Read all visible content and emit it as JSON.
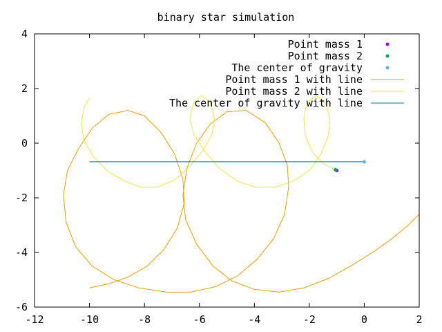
{
  "chart_data": {
    "type": "line",
    "title": "binary star simulation",
    "xlabel": "",
    "ylabel": "",
    "xlim": [
      -12,
      2
    ],
    "ylim": [
      -6,
      4
    ],
    "xticks": [
      -12,
      -10,
      -8,
      -6,
      -4,
      -2,
      0,
      2
    ],
    "yticks": [
      -6,
      -4,
      -2,
      0,
      2,
      4
    ],
    "grid": false,
    "legend_position": "top-right",
    "series": [
      {
        "name": "Point mass 1",
        "kind": "points",
        "color": "#9400d3",
        "points": [
          [
            -1.0,
            -1.0
          ]
        ]
      },
      {
        "name": "Point mass 2",
        "kind": "points",
        "color": "#009e73",
        "points": [
          [
            -1.05,
            -0.97
          ]
        ]
      },
      {
        "name": "The center of gravity",
        "kind": "points",
        "color": "#56b4e9",
        "points": [
          [
            0.0,
            -0.68
          ]
        ]
      },
      {
        "name": "Point mass 1 with line",
        "kind": "line",
        "color": "#e69f00",
        "points": [
          [
            -10.0,
            -5.3
          ],
          [
            -9.3,
            -5.15
          ],
          [
            -8.6,
            -4.9
          ],
          [
            -7.9,
            -4.5
          ],
          [
            -7.3,
            -3.9
          ],
          [
            -6.8,
            -3.1
          ],
          [
            -6.55,
            -2.2
          ],
          [
            -6.6,
            -1.3
          ],
          [
            -6.9,
            -0.4
          ],
          [
            -7.4,
            0.4
          ],
          [
            -8.0,
            1.0
          ],
          [
            -8.6,
            1.2
          ],
          [
            -9.3,
            1.05
          ],
          [
            -9.9,
            0.55
          ],
          [
            -10.4,
            -0.2
          ],
          [
            -10.8,
            -1.0
          ],
          [
            -10.95,
            -1.9
          ],
          [
            -10.85,
            -2.9
          ],
          [
            -10.5,
            -3.8
          ],
          [
            -9.9,
            -4.5
          ],
          [
            -9.1,
            -5.0
          ],
          [
            -8.2,
            -5.3
          ],
          [
            -7.2,
            -5.45
          ],
          [
            -6.3,
            -5.45
          ],
          [
            -5.4,
            -5.25
          ],
          [
            -4.6,
            -4.85
          ],
          [
            -3.9,
            -4.25
          ],
          [
            -3.3,
            -3.5
          ],
          [
            -2.9,
            -2.6
          ],
          [
            -2.75,
            -1.6
          ],
          [
            -2.8,
            -0.8
          ],
          [
            -3.1,
            0.0
          ],
          [
            -3.6,
            0.75
          ],
          [
            -4.3,
            1.2
          ],
          [
            -5.0,
            1.15
          ],
          [
            -5.6,
            0.7
          ],
          [
            -6.1,
            0.0
          ],
          [
            -6.45,
            -0.9
          ],
          [
            -6.6,
            -1.9
          ],
          [
            -6.5,
            -2.8
          ],
          [
            -6.1,
            -3.7
          ],
          [
            -5.5,
            -4.5
          ],
          [
            -4.8,
            -5.05
          ],
          [
            -4.0,
            -5.35
          ],
          [
            -3.1,
            -5.45
          ],
          [
            -2.2,
            -5.3
          ],
          [
            -1.3,
            -4.95
          ],
          [
            -0.5,
            -4.5
          ],
          [
            0.3,
            -4.0
          ],
          [
            1.0,
            -3.5
          ],
          [
            1.6,
            -3.0
          ],
          [
            2.0,
            -2.6
          ]
        ]
      },
      {
        "name": "Point mass 2 with line",
        "kind": "line",
        "color": "#f0e442",
        "points": [
          [
            -10.0,
            1.65
          ],
          [
            -10.2,
            1.3
          ],
          [
            -10.3,
            0.7
          ],
          [
            -10.2,
            0.1
          ],
          [
            -9.85,
            -0.5
          ],
          [
            -9.3,
            -1.05
          ],
          [
            -8.7,
            -1.4
          ],
          [
            -8.1,
            -1.62
          ],
          [
            -7.5,
            -1.6
          ],
          [
            -6.9,
            -1.35
          ],
          [
            -6.4,
            -0.9
          ],
          [
            -5.9,
            -0.3
          ],
          [
            -5.55,
            0.3
          ],
          [
            -5.45,
            0.9
          ],
          [
            -5.6,
            1.5
          ],
          [
            -5.9,
            1.75
          ],
          [
            -6.2,
            1.5
          ],
          [
            -6.35,
            0.9
          ],
          [
            -6.2,
            0.3
          ],
          [
            -5.8,
            -0.3
          ],
          [
            -5.3,
            -0.9
          ],
          [
            -4.6,
            -1.4
          ],
          [
            -3.9,
            -1.62
          ],
          [
            -3.2,
            -1.6
          ],
          [
            -2.5,
            -1.35
          ],
          [
            -1.95,
            -0.95
          ],
          [
            -1.55,
            -0.35
          ],
          [
            -1.3,
            0.3
          ],
          [
            -1.25,
            0.9
          ],
          [
            -1.4,
            1.45
          ],
          [
            -1.75,
            1.75
          ],
          [
            -2.1,
            1.45
          ],
          [
            -2.2,
            0.9
          ],
          [
            -2.15,
            0.3
          ],
          [
            -1.9,
            -0.3
          ],
          [
            -1.5,
            -0.75
          ],
          [
            -1.05,
            -0.97
          ]
        ]
      },
      {
        "name": "The center of gravity with line",
        "kind": "line",
        "color": "#0072b2",
        "points": [
          [
            -10.0,
            -0.68
          ],
          [
            0.0,
            -0.68
          ]
        ]
      }
    ]
  }
}
